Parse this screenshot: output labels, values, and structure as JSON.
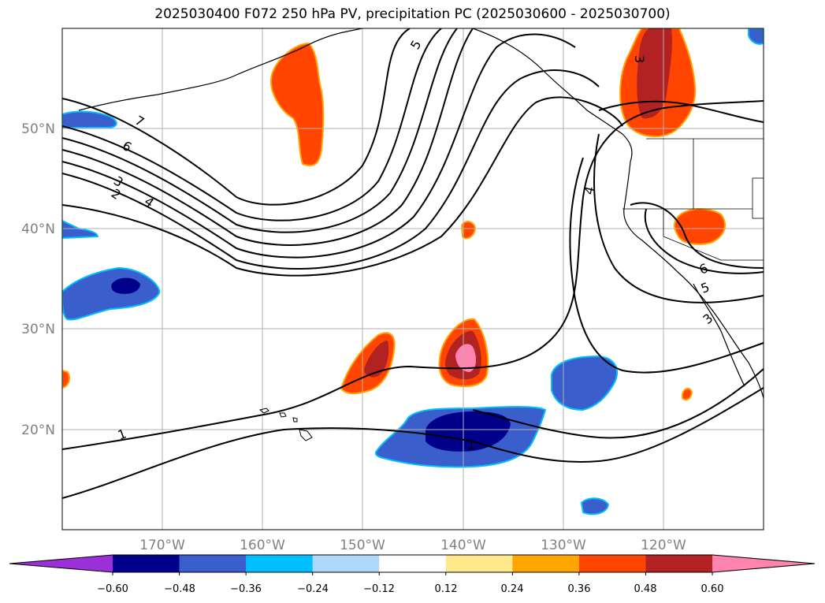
{
  "title": "2025030400 F072 250 hPa PV, precipitation PC (2025030600 - 2025030700)",
  "map": {
    "projection": "PlateCarree",
    "lon_range": [
      -180,
      -110
    ],
    "lat_range": [
      10,
      60
    ],
    "lat_ticks": [
      "50°N",
      "40°N",
      "30°N",
      "20°N"
    ],
    "lat_values": [
      50,
      40,
      30,
      20
    ],
    "lon_ticks": [
      "170°W",
      "160°W",
      "150°W",
      "140°W",
      "130°W",
      "120°W"
    ],
    "lon_values": [
      -170,
      -160,
      -150,
      -140,
      -130,
      -120
    ],
    "gridlines": true,
    "grid_color": "#b0b0b0"
  },
  "pv_contour_labels": [
    "7",
    "6",
    "5",
    "4",
    "3",
    "2",
    "1",
    "1",
    "4",
    "6",
    "5",
    "3",
    "3",
    "4"
  ],
  "colorbar": {
    "ticks": [
      "−0.60",
      "−0.48",
      "−0.36",
      "−0.24",
      "−0.12",
      "0.12",
      "0.24",
      "0.36",
      "0.48",
      "0.60"
    ],
    "colors": [
      "#9b30d9",
      "#00008b",
      "#3a5fcd",
      "#00bfff",
      "#add8f7",
      "#ffffff",
      "#ffe98a",
      "#ffa500",
      "#ff4500",
      "#b22222",
      "#ff85b0"
    ],
    "extend": "both"
  }
}
